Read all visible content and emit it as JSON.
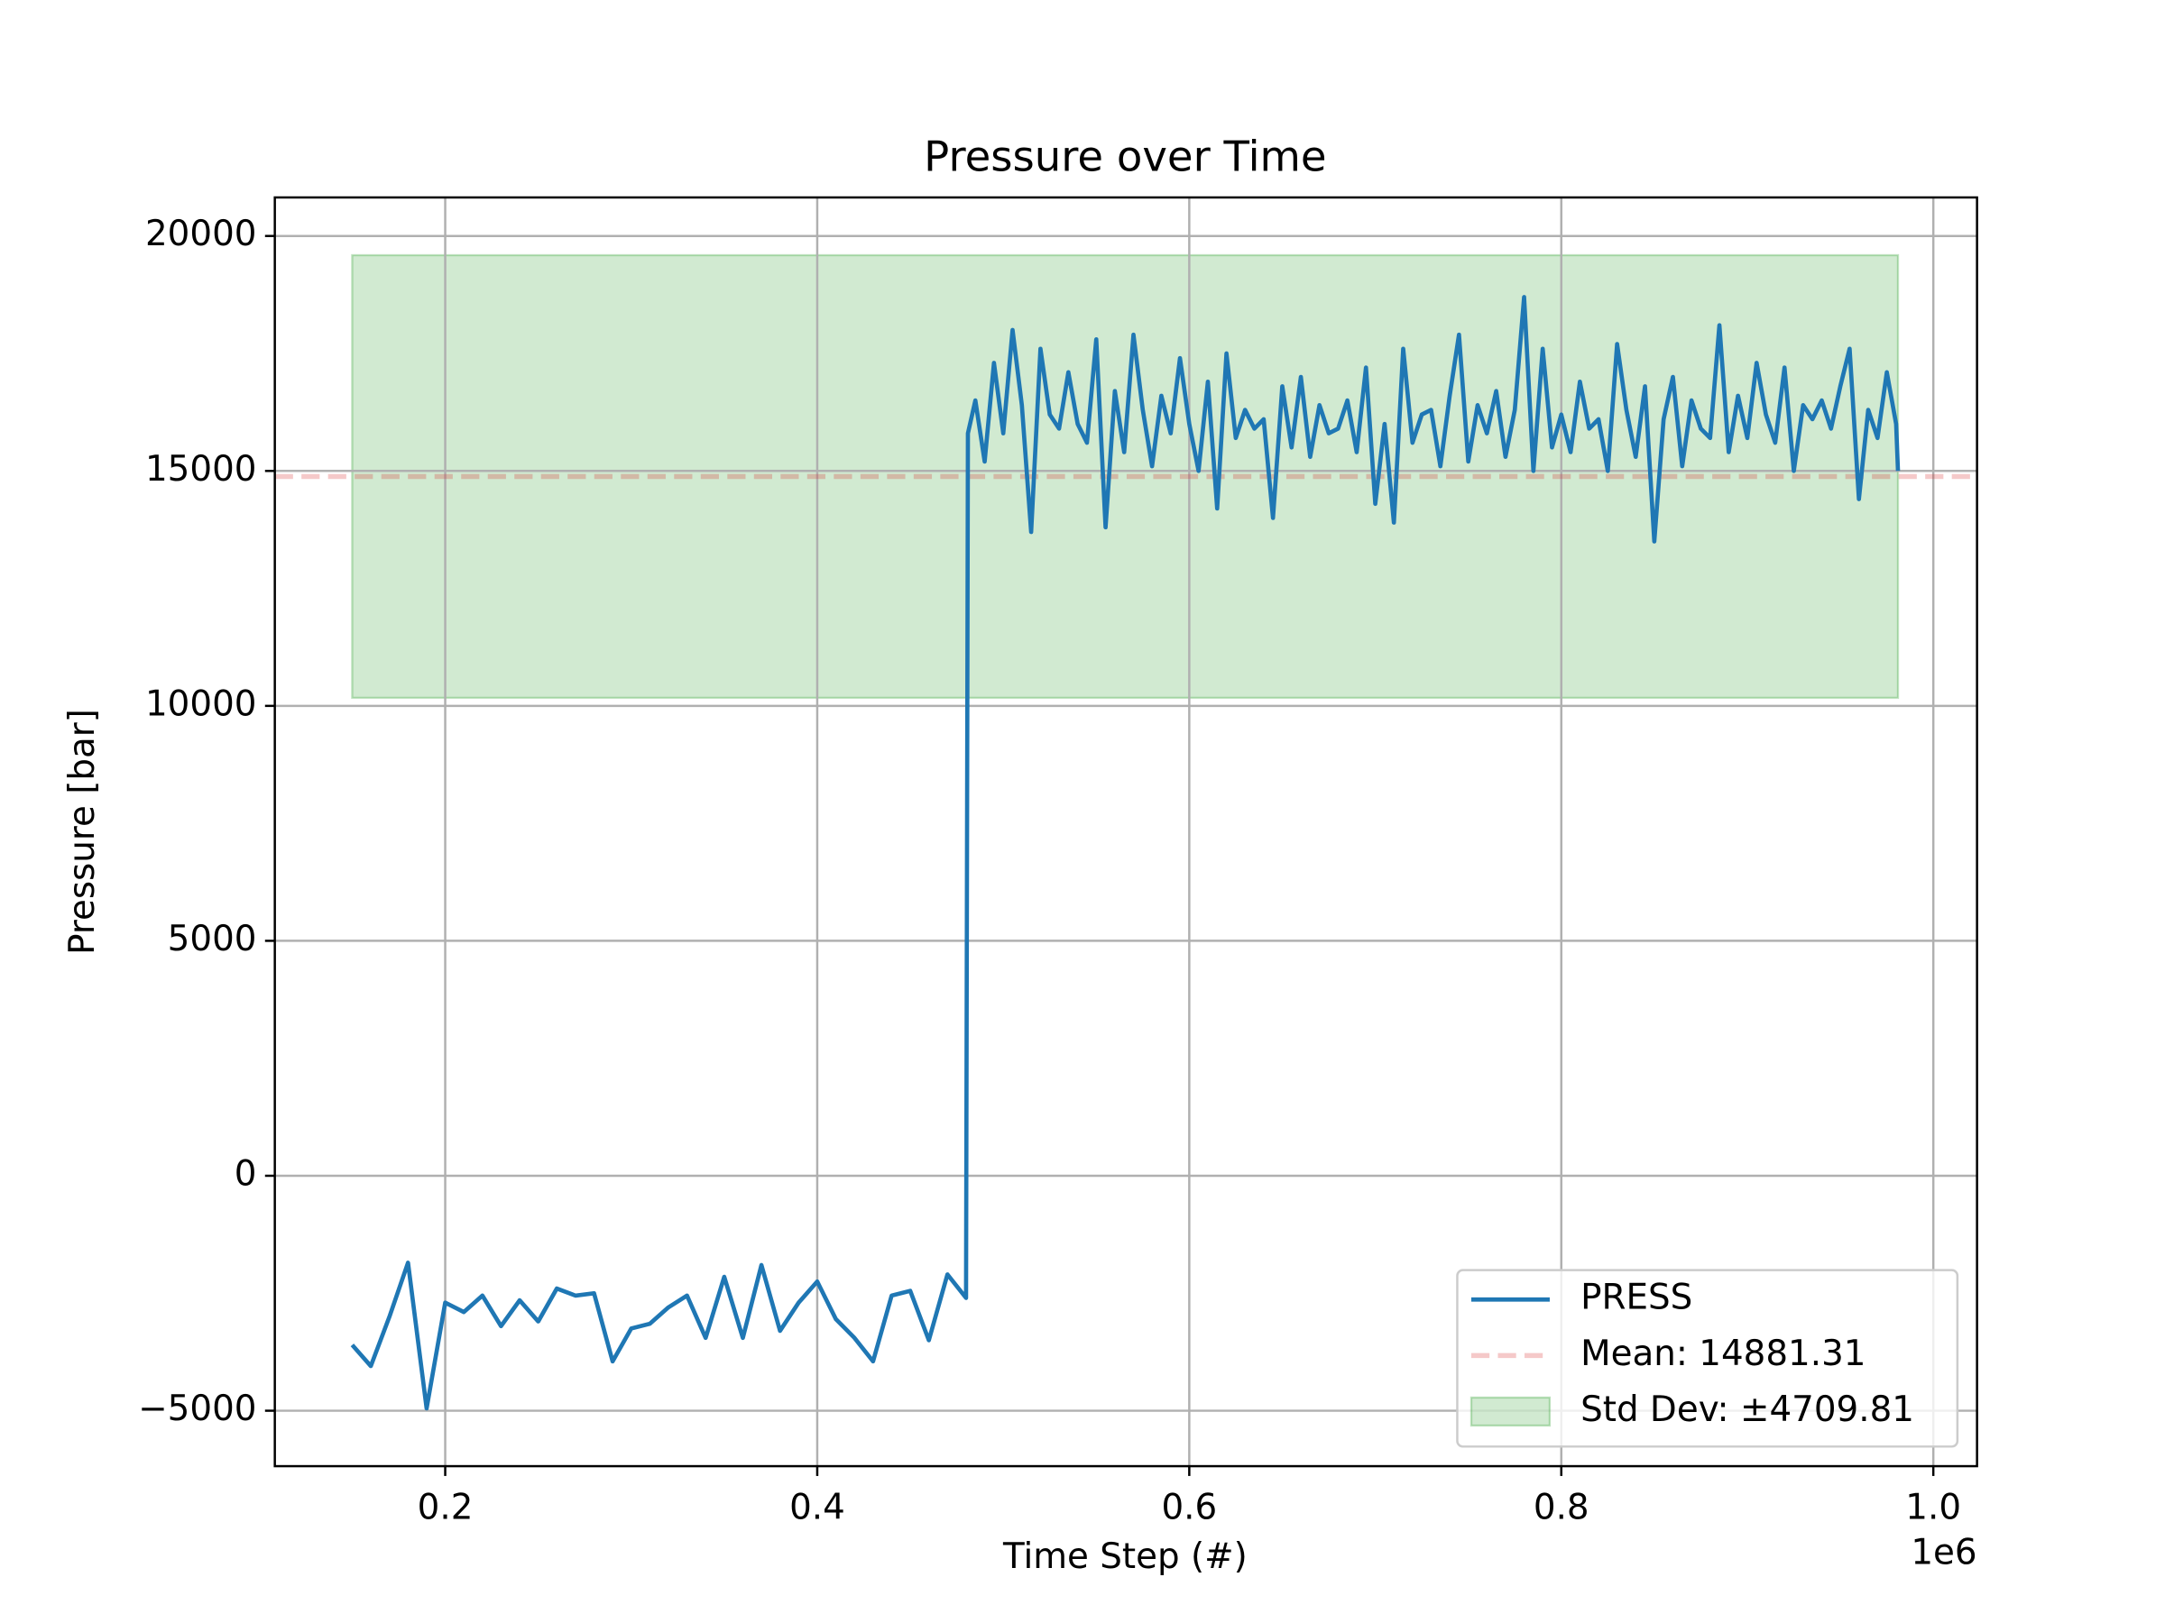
{
  "chart_data": {
    "type": "line",
    "title": "Pressure over Time",
    "x_label": "Time Step (#)",
    "y_label": "Pressure [bar]",
    "x_offset_label": "1e6",
    "x": [
      150000,
      160000,
      170000,
      180000,
      190000,
      200000,
      210000,
      220000,
      230000,
      240000,
      250000,
      260000,
      270000,
      280000,
      290000,
      300000,
      310000,
      320000,
      330000,
      340000,
      350000,
      360000,
      370000,
      380000,
      390000,
      400000,
      410000,
      420000,
      430000,
      440000,
      450000,
      460000,
      470000,
      480000,
      481000,
      485000,
      490000,
      495000,
      500000,
      505000,
      510000,
      515000,
      520000,
      525000,
      530000,
      535000,
      540000,
      545000,
      550000,
      555000,
      560000,
      565000,
      570000,
      575000,
      580000,
      585000,
      590000,
      595000,
      600000,
      605000,
      610000,
      615000,
      620000,
      625000,
      630000,
      635000,
      640000,
      645000,
      650000,
      655000,
      660000,
      665000,
      670000,
      675000,
      680000,
      685000,
      690000,
      695000,
      700000,
      705000,
      710000,
      715000,
      720000,
      725000,
      730000,
      735000,
      740000,
      745000,
      750000,
      755000,
      760000,
      765000,
      770000,
      775000,
      780000,
      785000,
      790000,
      795000,
      800000,
      805000,
      810000,
      815000,
      820000,
      825000,
      830000,
      835000,
      840000,
      845000,
      850000,
      855000,
      860000,
      865000,
      870000,
      875000,
      880000,
      885000,
      890000,
      895000,
      900000,
      905000,
      910000,
      915000,
      920000,
      925000,
      930000,
      935000,
      940000,
      945000,
      950000,
      955000,
      960000,
      965000,
      970000,
      975000,
      980000,
      981000
    ],
    "series": [
      {
        "name": "PRESS",
        "color": "#1f77b4",
        "values": [
          -3600,
          -4050,
          -3000,
          -1850,
          -4950,
          -2700,
          -2900,
          -2550,
          -3200,
          -2650,
          -3100,
          -2400,
          -2550,
          -2500,
          -3950,
          -3250,
          -3150,
          -2800,
          -2550,
          -3450,
          -2150,
          -3450,
          -1900,
          -3300,
          -2700,
          -2250,
          -3050,
          -3450,
          -3950,
          -2550,
          -2450,
          -3500,
          -2100,
          -2600,
          15800,
          16500,
          15200,
          17300,
          15800,
          18000,
          16400,
          13700,
          17600,
          16200,
          15900,
          17100,
          16000,
          15600,
          17800,
          13800,
          16700,
          15400,
          17900,
          16300,
          15100,
          16600,
          15800,
          17400,
          16000,
          15000,
          16900,
          14200,
          17500,
          15700,
          16300,
          15900,
          16100,
          14000,
          16800,
          15500,
          17000,
          15300,
          16400,
          15800,
          15900,
          16500,
          15400,
          17200,
          14300,
          16000,
          13900,
          17600,
          15600,
          16200,
          16300,
          15100,
          16600,
          17900,
          15200,
          16400,
          15800,
          16700,
          15300,
          16300,
          18700,
          15000,
          17600,
          15500,
          16200,
          15400,
          16900,
          15900,
          16100,
          15000,
          17700,
          16300,
          15300,
          16800,
          13500,
          16100,
          17000,
          15100,
          16500,
          15900,
          15700,
          18100,
          15400,
          16600,
          15700,
          17300,
          16200,
          15600,
          17200,
          15000,
          16400,
          16100,
          16500,
          15900,
          16800,
          17600,
          14400,
          16300,
          15700,
          17100,
          16000,
          15000
        ]
      }
    ],
    "mean": {
      "name": "Mean: 14881.31",
      "value": 14881.31,
      "color": "#d62728"
    },
    "std_band": {
      "name": "Std Dev: ±4709.81",
      "value": 4709.81,
      "color": "#2ca02c"
    },
    "xlim": [
      108400,
      1023500
    ],
    "ylim": [
      -6180,
      20820
    ],
    "xticks": [
      {
        "value": 200000,
        "label": "0.2"
      },
      {
        "value": 400000,
        "label": "0.4"
      },
      {
        "value": 600000,
        "label": "0.6"
      },
      {
        "value": 800000,
        "label": "0.8"
      },
      {
        "value": 1000000,
        "label": "1.0"
      }
    ],
    "yticks": [
      {
        "value": -5000,
        "label": "−5000"
      },
      0,
      5000,
      10000,
      15000,
      20000
    ],
    "grid": true,
    "legend": "lower right"
  }
}
